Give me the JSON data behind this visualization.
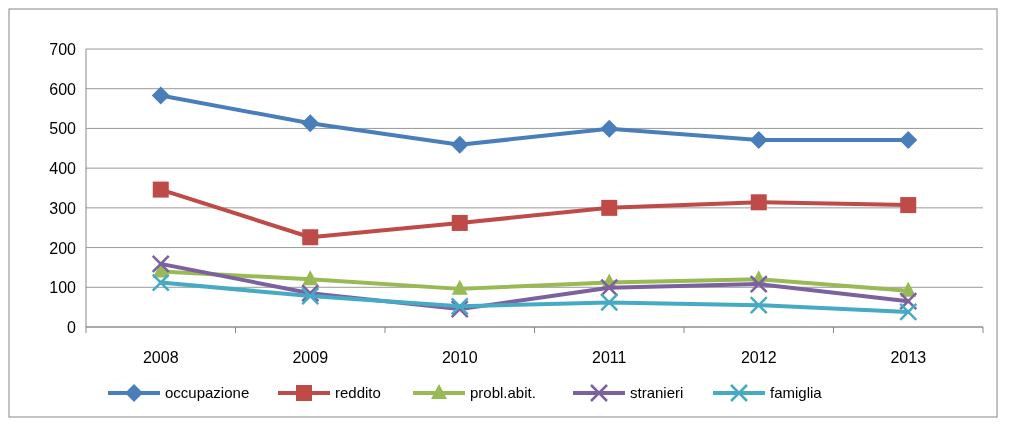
{
  "chart_data": {
    "type": "line",
    "categories": [
      "2008",
      "2009",
      "2010",
      "2011",
      "2012",
      "2013"
    ],
    "series": [
      {
        "name": "occupazione",
        "color": "#4a7ebb",
        "marker": "diamond",
        "values": [
          583,
          513,
          459,
          499,
          471,
          471
        ]
      },
      {
        "name": "reddito",
        "color": "#be4b48",
        "marker": "square",
        "values": [
          346,
          226,
          262,
          300,
          314,
          307
        ]
      },
      {
        "name": "probl.abit.",
        "color": "#98b954",
        "marker": "triangle",
        "values": [
          140,
          120,
          96,
          112,
          120,
          91
        ]
      },
      {
        "name": "stranieri",
        "color": "#7d60a0",
        "marker": "cross",
        "values": [
          159,
          85,
          45,
          99,
          108,
          65
        ]
      },
      {
        "name": "famiglia",
        "color": "#46aac5",
        "marker": "cross",
        "values": [
          112,
          78,
          52,
          62,
          55,
          38
        ]
      }
    ],
    "ylim": [
      0,
      700
    ],
    "yticks": [
      0,
      100,
      200,
      300,
      400,
      500,
      600,
      700
    ],
    "grid": "y",
    "legend": "bottom"
  }
}
